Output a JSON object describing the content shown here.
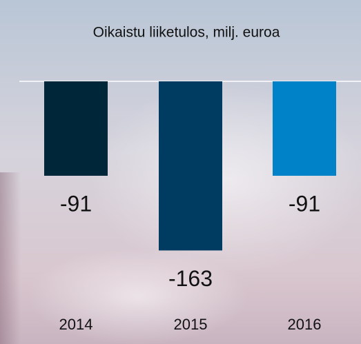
{
  "chart_data": {
    "type": "bar",
    "title": "Oikaistu liiketulos, milj. euroa",
    "categories": [
      "2014",
      "2015",
      "2016"
    ],
    "values": [
      -91,
      -163,
      -91
    ],
    "colors": [
      "#00263a",
      "#003c62",
      "#0082c8"
    ]
  }
}
